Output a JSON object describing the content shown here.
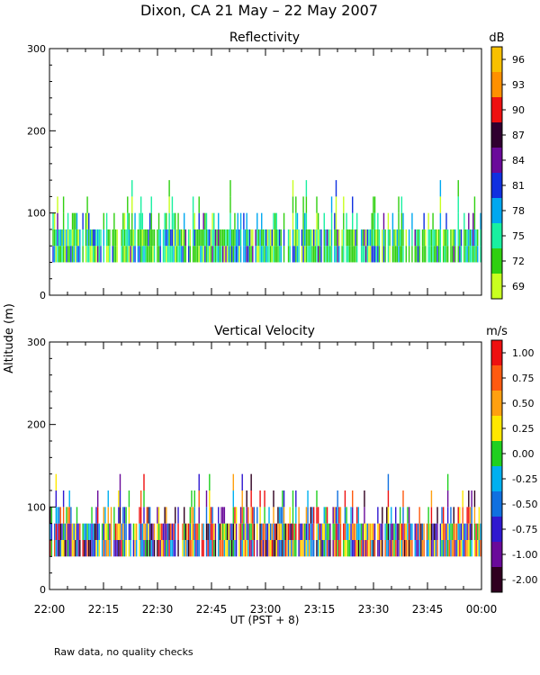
{
  "title": "Dixon, CA  21 May – 22 May 2007",
  "footnote": "Raw data, no quality checks",
  "shared_ylabel": "Altitude (m)",
  "chart_data": [
    {
      "type": "heatmap",
      "title": "Reflectivity",
      "colorbar_unit": "dB",
      "colorbar_ticks": [
        "96",
        "93",
        "90",
        "87",
        "84",
        "81",
        "78",
        "75",
        "72",
        "69"
      ],
      "colorbar_colors": [
        "#f8c000",
        "#ff9000",
        "#ee1010",
        "#300030",
        "#6a0a9a",
        "#1030e0",
        "#00a8f0",
        "#18f0a0",
        "#30d010",
        "#c8ff20"
      ],
      "ylim": [
        0,
        300
      ],
      "yticks": [
        "300",
        "200",
        "100",
        "0"
      ],
      "ylabel": "Altitude (m)",
      "xlabel": "",
      "xticks": [
        "22:00",
        "22:15",
        "22:30",
        "22:45",
        "23:00",
        "23:15",
        "23:30",
        "23:45",
        "00:00"
      ],
      "note": "Intermittent echoes between ~40 m and ~140 m altitude, 22:00–00:00 UT"
    },
    {
      "type": "heatmap",
      "title": "Vertical Velocity",
      "colorbar_unit": "m/s",
      "colorbar_ticks": [
        "1.00",
        "0.75",
        "0.50",
        "0.25",
        "0.00",
        "-0.25",
        "-0.50",
        "-0.75",
        "-1.00",
        "-2.00"
      ],
      "colorbar_colors": [
        "#ee1010",
        "#ff5a10",
        "#ffa010",
        "#ffe800",
        "#20d020",
        "#00b0f0",
        "#1070e0",
        "#3018d0",
        "#6a0a9a",
        "#300020"
      ],
      "ylim": [
        0,
        300
      ],
      "yticks": [
        "300",
        "200",
        "100",
        "0"
      ],
      "ylabel": "Altitude (m)",
      "xlabel": "UT  (PST + 8)",
      "xticks": [
        "22:00",
        "22:15",
        "22:30",
        "22:45",
        "23:00",
        "23:15",
        "23:30",
        "23:45",
        "00:00"
      ],
      "note": "Intermittent echoes between ~40 m and ~140 m altitude, 22:00–00:00 UT"
    }
  ]
}
